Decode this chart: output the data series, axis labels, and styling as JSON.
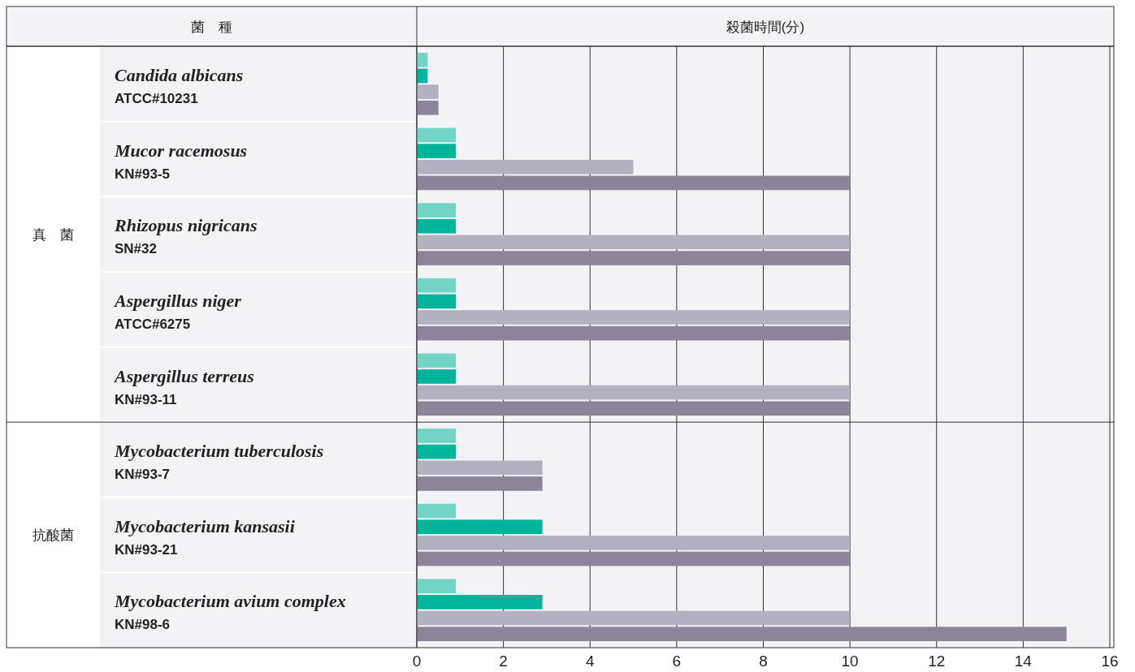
{
  "chart_data": {
    "type": "bar",
    "orientation": "horizontal",
    "ylabel": "菌　種",
    "xlabel": "殺菌時間(分)",
    "categories": [
      "Candida albicans\nATCC#10231",
      "Mucor racemosus\nKN#93-5",
      "Rhizopus nigricans\nSN#32",
      "Aspergillus niger\nATCC#6275",
      "Aspergillus terreus\nKN#93-11",
      "Mycobacterium tuberculosis\nKN#93-7",
      "Mycobacterium kansasii\nKN#93-21",
      "Mycobacterium avium complex\nKN#98-6"
    ],
    "series": [
      {
        "color": "#72d4c4",
        "values": [
          0.25,
          0.9,
          0.9,
          0.9,
          0.9,
          0.9,
          0.9,
          0.9
        ]
      },
      {
        "color": "#00b39b",
        "values": [
          0.25,
          0.9,
          0.9,
          0.9,
          0.9,
          0.9,
          2.9,
          2.9
        ]
      },
      {
        "color": "#b3b0bf",
        "values": [
          0.5,
          5,
          10,
          10,
          10,
          2.9,
          10,
          10
        ]
      },
      {
        "color": "#8c8499",
        "values": [
          0.5,
          10,
          10,
          10,
          10,
          2.9,
          10,
          15
        ]
      }
    ],
    "xlim": [
      0,
      16
    ],
    "xticks": [
      0,
      2,
      4,
      6,
      8,
      10,
      12,
      14,
      16
    ],
    "grid": "x",
    "annotations": [
      "真　菌",
      "抗酸菌"
    ]
  }
}
